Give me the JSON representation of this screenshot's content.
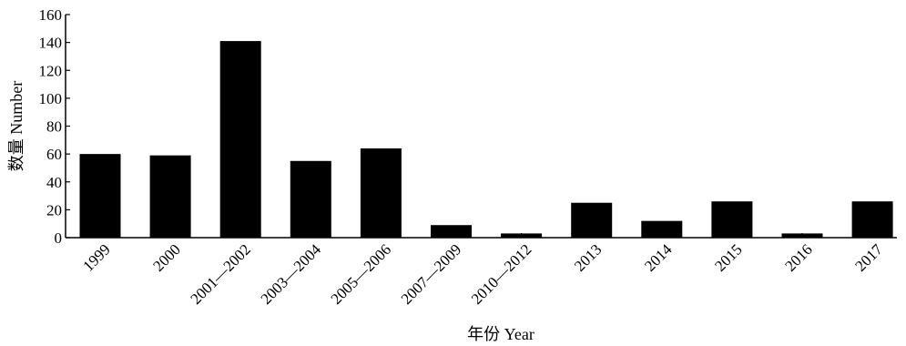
{
  "chart_data": {
    "type": "bar",
    "xlabel": "年份 Year",
    "ylabel": "数量 Number",
    "ylim": [
      0,
      160
    ],
    "yticks": [
      0,
      20,
      40,
      60,
      80,
      100,
      120,
      140,
      160
    ],
    "categories": [
      "1999",
      "2000",
      "2001—2002",
      "2003—2004",
      "2005—2006",
      "2007—2009",
      "2010—2012",
      "2013",
      "2014",
      "2015",
      "2016",
      "2017"
    ],
    "values": [
      60,
      59,
      141,
      55,
      64,
      9,
      3,
      25,
      12,
      26,
      3,
      26
    ],
    "bar_color": "#000000",
    "grid": false,
    "legend": "none"
  }
}
